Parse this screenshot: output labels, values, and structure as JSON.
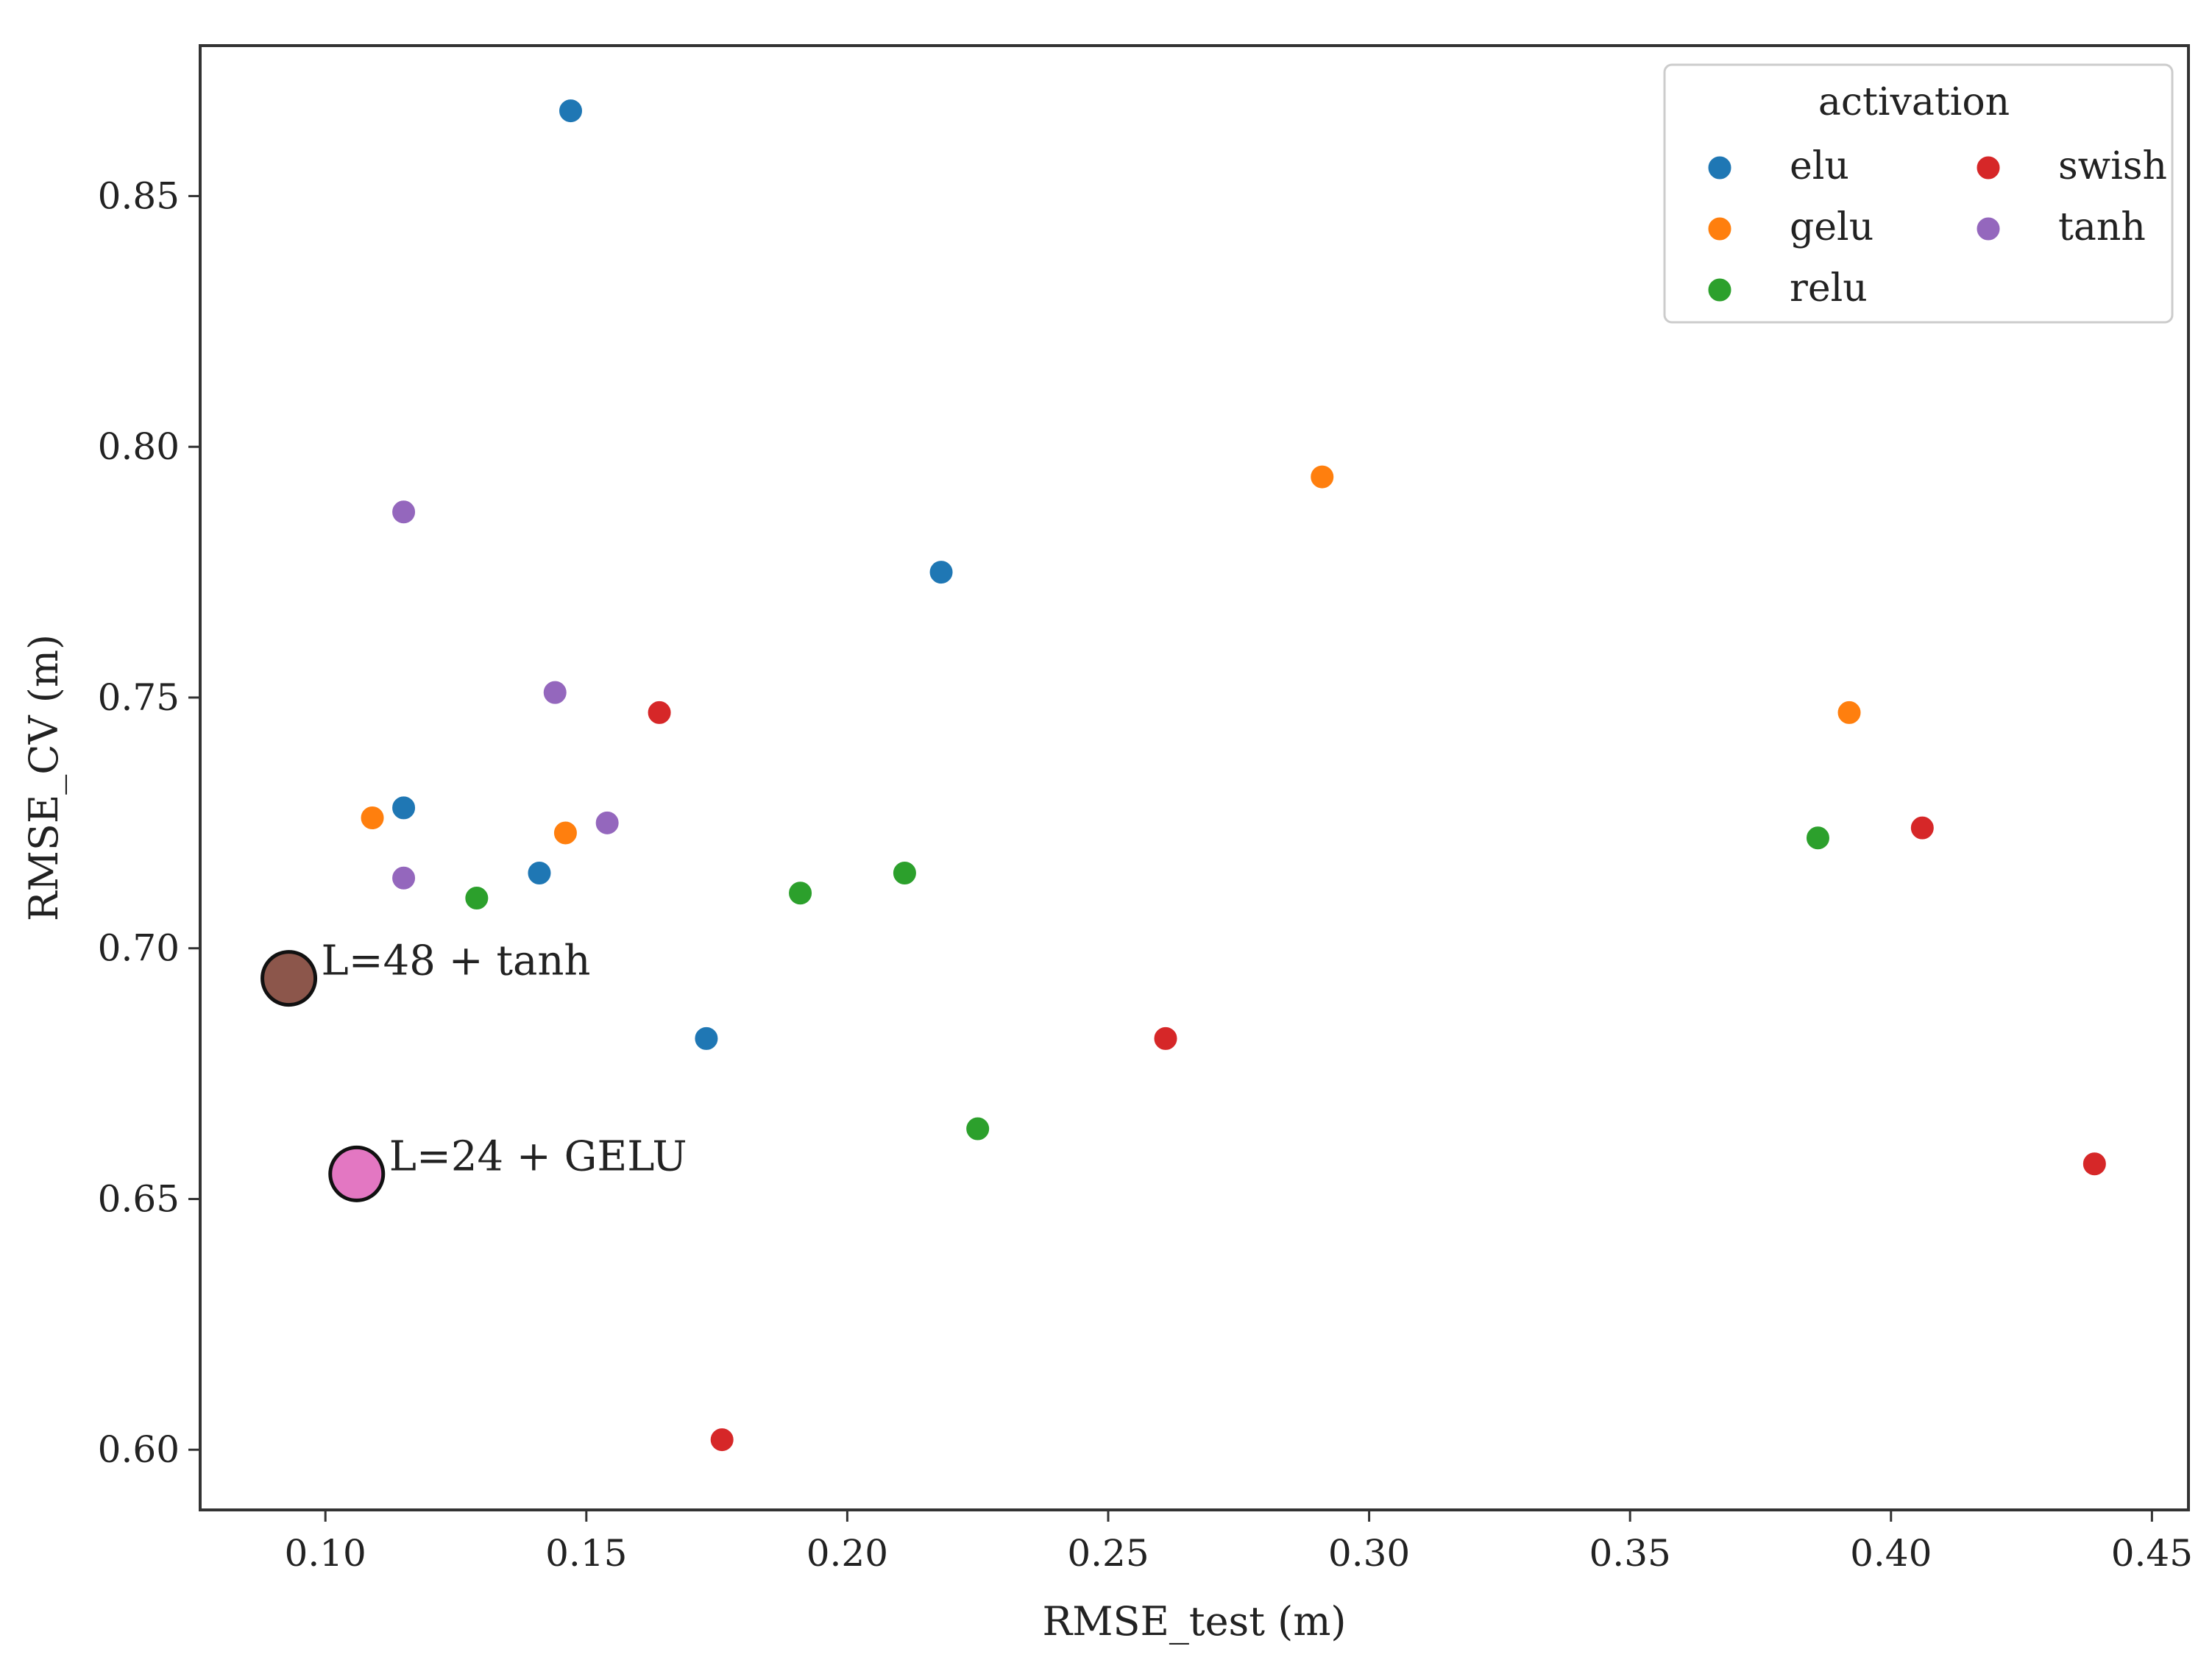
{
  "chart_data": {
    "type": "scatter",
    "title": "",
    "xlabel": "RMSE_test (m)",
    "ylabel": "RMSE_CV (m)",
    "xlim": [
      0.076,
      0.457
    ],
    "ylim": [
      0.588,
      0.88
    ],
    "xticks": [
      0.1,
      0.15,
      0.2,
      0.25,
      0.3,
      0.35,
      0.4,
      0.45
    ],
    "xtick_labels": [
      "0.10",
      "0.15",
      "0.20",
      "0.25",
      "0.30",
      "0.35",
      "0.40",
      "0.45"
    ],
    "yticks": [
      0.6,
      0.65,
      0.7,
      0.75,
      0.8,
      0.85
    ],
    "ytick_labels": [
      "0.60",
      "0.65",
      "0.70",
      "0.75",
      "0.80",
      "0.85"
    ],
    "grid": false,
    "legend": {
      "title": "activation",
      "placement": "top-right",
      "columns": 2
    },
    "series": [
      {
        "name": "elu",
        "color": "#1f77b4",
        "points": [
          [
            0.147,
            0.867
          ],
          [
            0.218,
            0.775
          ],
          [
            0.115,
            0.728
          ],
          [
            0.141,
            0.715
          ],
          [
            0.173,
            0.682
          ]
        ]
      },
      {
        "name": "gelu",
        "color": "#ff7f0e",
        "points": [
          [
            0.291,
            0.794
          ],
          [
            0.392,
            0.747
          ],
          [
            0.109,
            0.726
          ],
          [
            0.146,
            0.723
          ]
        ]
      },
      {
        "name": "relu",
        "color": "#2ca02c",
        "points": [
          [
            0.386,
            0.722
          ],
          [
            0.211,
            0.715
          ],
          [
            0.191,
            0.711
          ],
          [
            0.129,
            0.71
          ],
          [
            0.225,
            0.664
          ]
        ]
      },
      {
        "name": "swish",
        "color": "#d62728",
        "points": [
          [
            0.164,
            0.747
          ],
          [
            0.406,
            0.724
          ],
          [
            0.261,
            0.682
          ],
          [
            0.439,
            0.657
          ],
          [
            0.176,
            0.602
          ]
        ]
      },
      {
        "name": "tanh",
        "color": "#9467bd",
        "points": [
          [
            0.115,
            0.787
          ],
          [
            0.144,
            0.751
          ],
          [
            0.154,
            0.725
          ],
          [
            0.115,
            0.714
          ]
        ]
      }
    ],
    "highlights": [
      {
        "label": "L=48 + tanh",
        "x": 0.093,
        "y": 0.694,
        "color": "#8c564b"
      },
      {
        "label": "L=24 + GELU",
        "x": 0.106,
        "y": 0.655,
        "color": "#e377c2"
      }
    ]
  }
}
